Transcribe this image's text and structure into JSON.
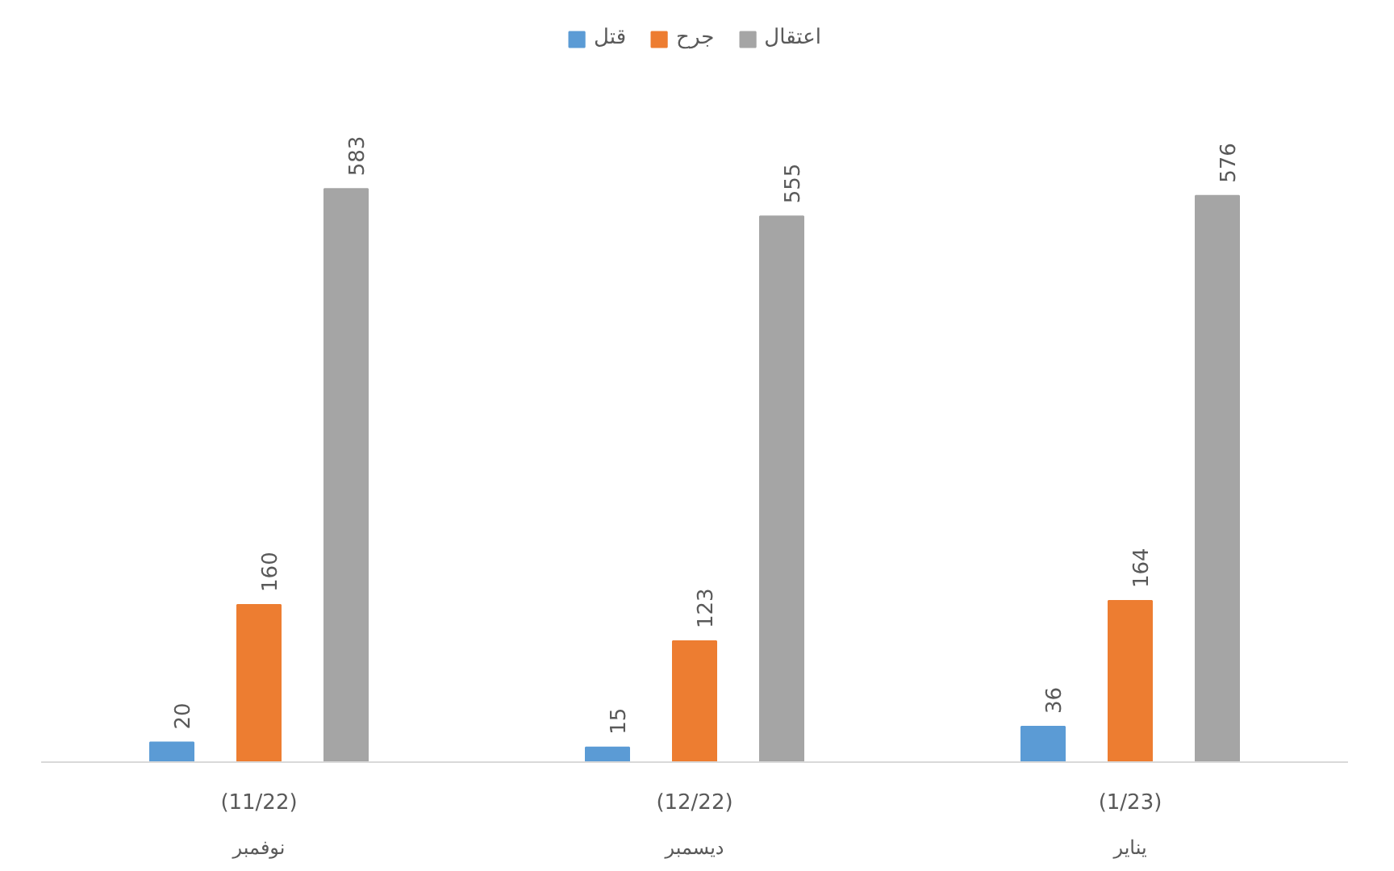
{
  "chart_data": {
    "type": "bar",
    "categories": [
      "(11/22)\nنوفمبر",
      "(12/22)\nديسمبر",
      "(1/23)\nيناير"
    ],
    "series": [
      {
        "name": "قتل",
        "color": "#5b9bd5",
        "values": [
          20,
          15,
          36
        ]
      },
      {
        "name": "جرح",
        "color": "#ed7d31",
        "values": [
          160,
          123,
          164
        ]
      },
      {
        "name": "اعتقال",
        "color": "#a5a5a5",
        "values": [
          583,
          555,
          576
        ]
      }
    ],
    "data_labels": true,
    "legend": "top",
    "grid": false
  }
}
